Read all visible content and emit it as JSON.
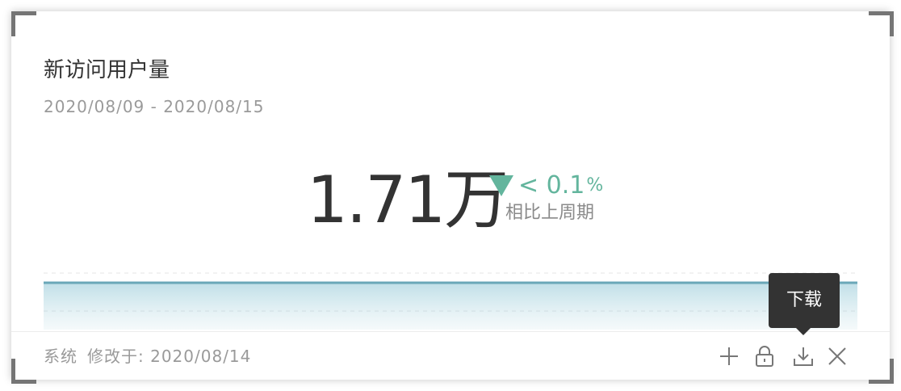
{
  "widget": {
    "title": "新访问用户量",
    "date_range": "2020/08/09 - 2020/08/15",
    "metric": {
      "value": "1.71万",
      "change": "< 0.1",
      "change_unit": "%",
      "change_direction": "down",
      "compare_label": "相比上周期"
    },
    "footer": {
      "owner": "系统",
      "modified_label": "修改于:",
      "modified_date": "2020/08/14"
    },
    "actions": [
      {
        "name": "add",
        "icon": "plus-icon"
      },
      {
        "name": "lock",
        "icon": "lock-icon"
      },
      {
        "name": "download",
        "icon": "download-icon",
        "tooltip": "下载"
      },
      {
        "name": "close",
        "icon": "close-icon"
      }
    ]
  },
  "colors": {
    "accent_change": "#63b59d",
    "sparkline_line": "#6aa7b8",
    "tooltip_bg": "#333333",
    "title_text": "#333333",
    "muted_text": "#9a9a9a"
  }
}
